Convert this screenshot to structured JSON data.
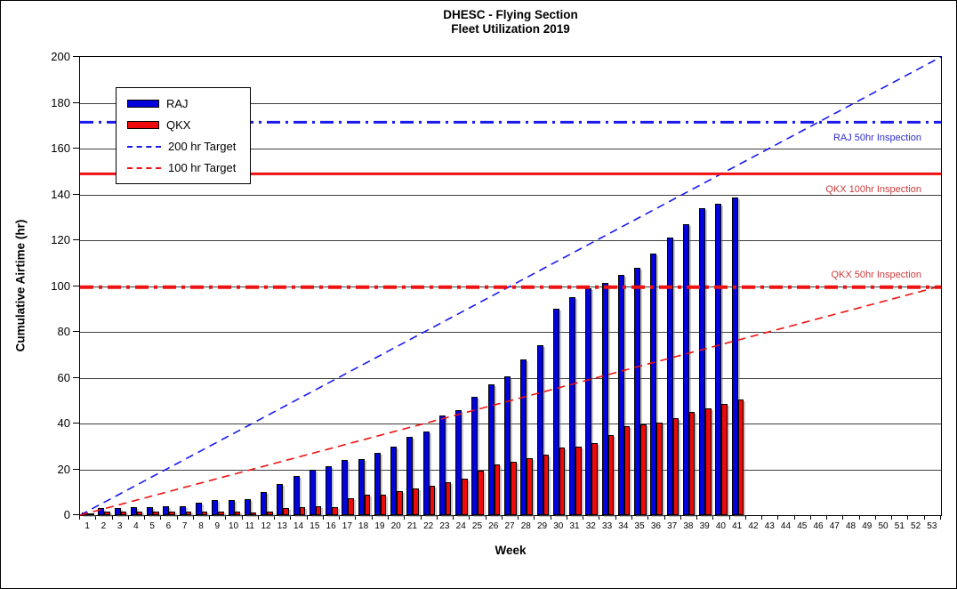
{
  "chart_data": {
    "type": "bar",
    "title_lines": [
      "DHESC - Flying Section",
      "Fleet Utilization 2019"
    ],
    "xlabel": "Week",
    "ylabel": "Cumulative Airtime (hr)",
    "ylim": [
      0,
      200
    ],
    "yticks": [
      0,
      20,
      40,
      60,
      80,
      100,
      120,
      140,
      160,
      180,
      200
    ],
    "x_weeks": [
      1,
      2,
      3,
      4,
      5,
      6,
      7,
      8,
      9,
      10,
      11,
      12,
      13,
      14,
      15,
      16,
      17,
      18,
      19,
      20,
      21,
      22,
      23,
      24,
      25,
      26,
      27,
      28,
      29,
      30,
      31,
      32,
      33,
      34,
      35,
      36,
      37,
      38,
      39,
      40,
      41,
      42,
      43,
      44,
      45,
      46,
      47,
      48,
      49,
      50,
      51,
      52,
      53
    ],
    "grid": "horizontal",
    "series": [
      {
        "name": "RAJ",
        "color": "#0202DC",
        "values": [
          1,
          3,
          3,
          3.5,
          3.5,
          4,
          4,
          5.5,
          6.5,
          6.5,
          7,
          10,
          13.5,
          17,
          20,
          21.5,
          24,
          24.5,
          27,
          30,
          34,
          36.5,
          43.5,
          46,
          51.5,
          57,
          60.5,
          68,
          74,
          90,
          95,
          99,
          101.5,
          105,
          108,
          114,
          121,
          127,
          134,
          136,
          138.5
        ]
      },
      {
        "name": "QKX",
        "color": "#EE0A0A",
        "values": [
          0.7,
          1.5,
          1.5,
          1.5,
          1.5,
          1.5,
          1.4,
          1.4,
          1.4,
          1.4,
          1.3,
          1.5,
          3,
          3.5,
          4,
          3.5,
          7.5,
          9,
          9,
          10.5,
          11.5,
          13,
          14.5,
          16,
          19.5,
          22,
          23.5,
          25,
          26.5,
          29.5,
          30,
          31.5,
          35,
          39,
          39.5,
          40.5,
          42.5,
          45,
          46.5,
          48.5,
          50.5
        ]
      }
    ],
    "target_lines": [
      {
        "name": "200 hr Target",
        "color": "#1A1AEE",
        "style": "dashed",
        "from_week": 0,
        "from_value": 0,
        "to_week": 53,
        "to_value": 200
      },
      {
        "name": "100 hr Target",
        "color": "#EE1111",
        "style": "dashed",
        "from_week": 0,
        "from_value": 0,
        "to_week": 53,
        "to_value": 100
      }
    ],
    "reference_lines": [
      {
        "label": "RAJ 50hr Inspection",
        "value": 171.5,
        "color": "#1A1AEE",
        "text_color": "#2D2DCC",
        "style": "dash-dot",
        "width": 3,
        "label_placement": "below"
      },
      {
        "label": "QKX 100hr Inspection",
        "value": 149,
        "color": "#EE1111",
        "text_color": "#CC3A3A",
        "style": "solid",
        "width": 3,
        "label_placement": "below"
      },
      {
        "label": "QKX 50hr Inspection",
        "value": 99.5,
        "color": "#EE1111",
        "text_color": "#CC3A3A",
        "style": "dash-dot",
        "width": 4,
        "label_placement": "above"
      }
    ],
    "legend": {
      "position": "top-left-inside",
      "entries": [
        {
          "label": "RAJ",
          "swatch": "bar",
          "color": "#0202DC"
        },
        {
          "label": "QKX",
          "swatch": "bar",
          "color": "#EE0A0A"
        },
        {
          "label": "200 hr Target",
          "swatch": "dashed-line",
          "color": "#1A1AEE"
        },
        {
          "label": "100 hr Target",
          "swatch": "dashed-line",
          "color": "#EE1111"
        }
      ]
    }
  }
}
